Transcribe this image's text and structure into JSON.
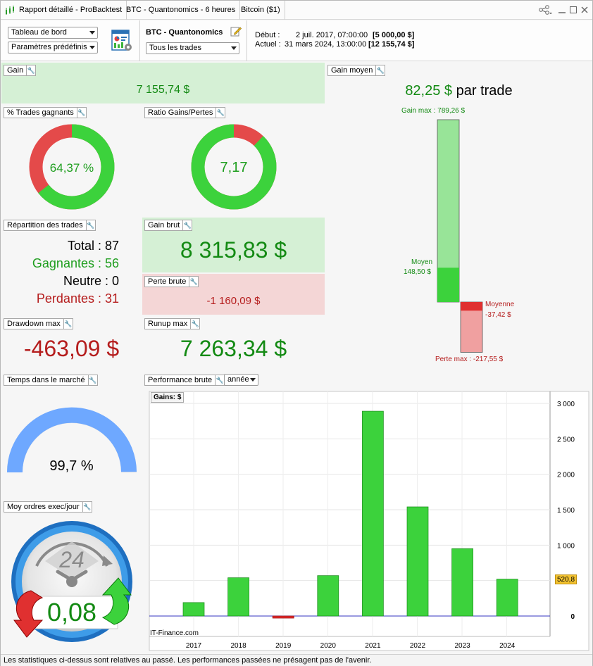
{
  "titlebar": {
    "tabs": [
      "Rapport détaillé - ProBacktest",
      "BTC - Quantonomics - 6 heures",
      "Bitcoin ($1)"
    ]
  },
  "toolbar": {
    "view_select": "Tableau de bord",
    "preset_select": "Paramètres prédéfinis",
    "strategy_name": "BTC - Quantonomics",
    "trades_select": "Tous les trades",
    "start_label": "Début :",
    "start_date": "2 juil. 2017, 07:00:00",
    "start_value": "[5 000,00 $]",
    "current_label": "Actuel :",
    "current_date": "31 mars 2024, 13:00:00",
    "current_value": "[12 155,74 $]"
  },
  "gain": {
    "title": "Gain",
    "value": "7 155,74 $"
  },
  "win_pct": {
    "title": "% Trades gagnants",
    "value": "64,37 %",
    "fraction": 0.6437
  },
  "ratio": {
    "title": "Ratio Gains/Pertes",
    "value": "7,17",
    "fraction": 0.8775
  },
  "avg_gain": {
    "title": "Gain moyen",
    "value": "82,25 $",
    "suffix": "par trade",
    "max_gain_label": "Gain max : 789,26 $",
    "avg_win_label": "Moyen",
    "avg_win_value": "148,50 $",
    "avg_loss_label": "Moyenne",
    "avg_loss_value": "-37,42 $",
    "max_loss_label": "Perte max : -217,55 $",
    "max_gain": 789.26,
    "avg_win": 148.5,
    "avg_loss": -37.42,
    "max_loss": -217.55
  },
  "distribution": {
    "title": "Répartition des trades",
    "total": "Total : 87",
    "winners": "Gagnantes : 56",
    "neutral": "Neutre : 0",
    "losers": "Perdantes : 31"
  },
  "gross_gain": {
    "title": "Gain brut",
    "value": "8 315,83 $"
  },
  "gross_loss": {
    "title": "Perte brute",
    "value": "-1 160,09 $"
  },
  "drawdown": {
    "title": "Drawdown max",
    "value": "-463,09 $"
  },
  "runup": {
    "title": "Runup max",
    "value": "7 263,34 $"
  },
  "time_in_market": {
    "title": "Temps dans le marché",
    "value": "99,7 %",
    "fraction": 0.997
  },
  "orders_per_day": {
    "title": "Moy ordres exec/jour",
    "value": "0,08",
    "clock_label": "24"
  },
  "performance": {
    "title": "Performance brute",
    "period_select": "année",
    "legend": "Gains: $",
    "watermark": "IT-Finance.com",
    "last_value_label": "520,8"
  },
  "chart_data": {
    "type": "bar",
    "categories": [
      "2017",
      "2018",
      "2019",
      "2020",
      "2021",
      "2022",
      "2023",
      "2024"
    ],
    "values": [
      190,
      540,
      -30,
      570,
      2890,
      1540,
      950,
      520.8
    ],
    "ylim": [
      -50,
      3000
    ],
    "yticks": [
      0,
      500,
      1000,
      1500,
      2000,
      2500,
      3000
    ],
    "ytick_labels": [
      "0",
      "",
      "1 000",
      "1 500",
      "2 000",
      "2 500",
      "3 000"
    ],
    "grid": true,
    "positive_color": "#3cd23c",
    "negative_color": "#e03030"
  },
  "status": "Les statistiques ci-dessus sont relatives au passé. Les performances passées ne présagent pas de l'avenir."
}
